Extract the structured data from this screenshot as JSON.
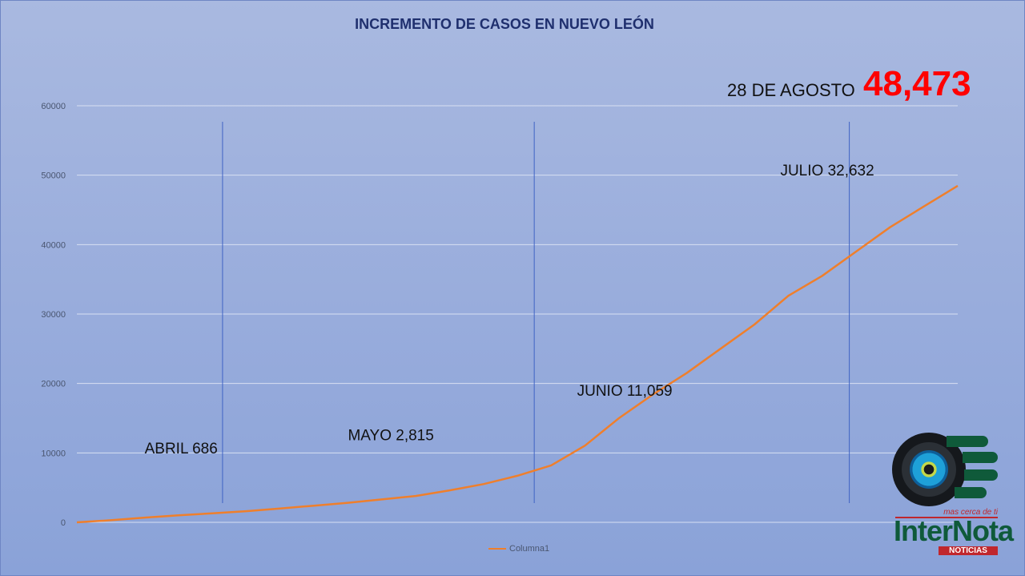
{
  "chart_data": {
    "type": "line",
    "title": "INCREMENTO DE CASOS EN NUEVO LEÓN",
    "xlabel": "",
    "ylabel": "",
    "ylim": [
      0,
      60000
    ],
    "y_ticks": [
      0,
      10000,
      20000,
      30000,
      40000,
      50000,
      60000
    ],
    "grid": true,
    "legend_position": "bottom",
    "series": [
      {
        "name": "Columna1",
        "color": "#ef7f2c",
        "values": [
          0,
          300,
          686,
          1000,
          1300,
          1600,
          2000,
          2400,
          2815,
          3300,
          3800,
          4600,
          5500,
          6700,
          8200,
          11059,
          15000,
          18400,
          21500,
          25000,
          28500,
          32632,
          35500,
          39000,
          42500,
          45500,
          48473
        ]
      }
    ],
    "annotations": [
      {
        "text": "ABRIL 686",
        "x_index": 2,
        "value": 686
      },
      {
        "text": "MAYO 2,815",
        "x_index": 8,
        "value": 2815
      },
      {
        "text": "JUNIO 11,059",
        "x_index": 15,
        "value": 11059
      },
      {
        "text": "JULIO 32,632",
        "x_index": 21,
        "value": 32632
      }
    ],
    "month_dividers_x_index": [
      4.3,
      13.5,
      22.8,
      32.0
    ],
    "final_label": {
      "date": "28 DE AGOSTO",
      "value": "48,473"
    }
  },
  "logo": {
    "tagline": "mas cerca de ti",
    "brand": "InterNota",
    "sub": "NOTICIAS"
  }
}
